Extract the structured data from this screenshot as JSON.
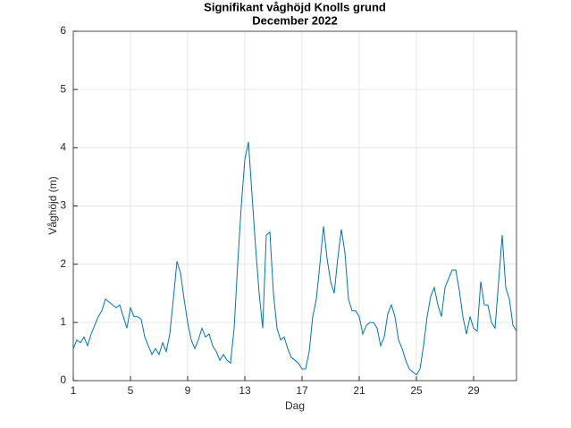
{
  "chart_data": {
    "type": "line",
    "title": "Signifikant våghöjd Knolls grund",
    "subtitle": "December 2022",
    "x_label": "Dag",
    "y_label": "Våghöjd (m)",
    "grid": true,
    "xlim": [
      1,
      32
    ],
    "xticks": [
      1,
      5,
      9,
      13,
      17,
      21,
      25,
      29
    ],
    "ylim": [
      0,
      6
    ],
    "yticks": [
      0,
      1,
      2,
      3,
      4,
      5,
      6
    ],
    "x": [
      1,
      1.25,
      1.5,
      1.75,
      2,
      2.25,
      2.5,
      2.75,
      3,
      3.25,
      3.5,
      3.75,
      4,
      4.25,
      4.5,
      4.75,
      5,
      5.25,
      5.5,
      5.75,
      6,
      6.25,
      6.5,
      6.75,
      7,
      7.25,
      7.5,
      7.75,
      8,
      8.25,
      8.5,
      8.75,
      9,
      9.25,
      9.5,
      9.75,
      10,
      10.25,
      10.5,
      10.75,
      11,
      11.25,
      11.5,
      11.75,
      12,
      12.25,
      12.5,
      12.75,
      13,
      13.25,
      13.5,
      13.75,
      14,
      14.25,
      14.5,
      14.75,
      15,
      15.25,
      15.5,
      15.75,
      16,
      16.25,
      16.5,
      16.75,
      17,
      17.25,
      17.5,
      17.75,
      18,
      18.25,
      18.5,
      18.75,
      19,
      19.25,
      19.5,
      19.75,
      20,
      20.25,
      20.5,
      20.75,
      21,
      21.25,
      21.5,
      21.75,
      22,
      22.25,
      22.5,
      22.75,
      23,
      23.25,
      23.5,
      23.75,
      24,
      24.25,
      24.5,
      24.75,
      25,
      25.25,
      25.5,
      25.75,
      26,
      26.25,
      26.5,
      26.75,
      27,
      27.25,
      27.5,
      27.75,
      28,
      28.25,
      28.5,
      28.75,
      29,
      29.25,
      29.5,
      29.75,
      30,
      30.25,
      30.5,
      30.75,
      31,
      31.25,
      31.5,
      31.75,
      32
    ],
    "series": [
      {
        "name": "Våghöjd",
        "color": "#0072bd",
        "values": [
          0.55,
          0.7,
          0.65,
          0.75,
          0.6,
          0.8,
          0.95,
          1.1,
          1.2,
          1.4,
          1.35,
          1.3,
          1.25,
          1.3,
          1.1,
          0.9,
          1.25,
          1.1,
          1.1,
          1.05,
          0.75,
          0.6,
          0.45,
          0.55,
          0.45,
          0.65,
          0.5,
          0.8,
          1.4,
          2.05,
          1.85,
          1.4,
          1.0,
          0.7,
          0.55,
          0.7,
          0.9,
          0.75,
          0.8,
          0.6,
          0.5,
          0.35,
          0.45,
          0.35,
          0.3,
          0.9,
          2.0,
          3.0,
          3.8,
          4.1,
          3.2,
          2.3,
          1.5,
          0.9,
          2.5,
          2.55,
          1.5,
          0.9,
          0.7,
          0.75,
          0.55,
          0.4,
          0.35,
          0.3,
          0.2,
          0.2,
          0.5,
          1.1,
          1.4,
          2.0,
          2.65,
          2.1,
          1.7,
          1.5,
          2.1,
          2.6,
          2.2,
          1.4,
          1.2,
          1.2,
          1.1,
          0.8,
          0.95,
          1.0,
          1.0,
          0.9,
          0.6,
          0.75,
          1.15,
          1.3,
          1.1,
          0.7,
          0.55,
          0.35,
          0.2,
          0.15,
          0.1,
          0.2,
          0.6,
          1.1,
          1.45,
          1.6,
          1.3,
          1.1,
          1.6,
          1.75,
          1.9,
          1.9,
          1.55,
          1.1,
          0.8,
          1.1,
          0.9,
          0.85,
          1.7,
          1.3,
          1.3,
          1.0,
          0.9,
          1.7,
          2.5,
          1.6,
          1.4,
          0.95,
          0.85
        ]
      }
    ]
  }
}
